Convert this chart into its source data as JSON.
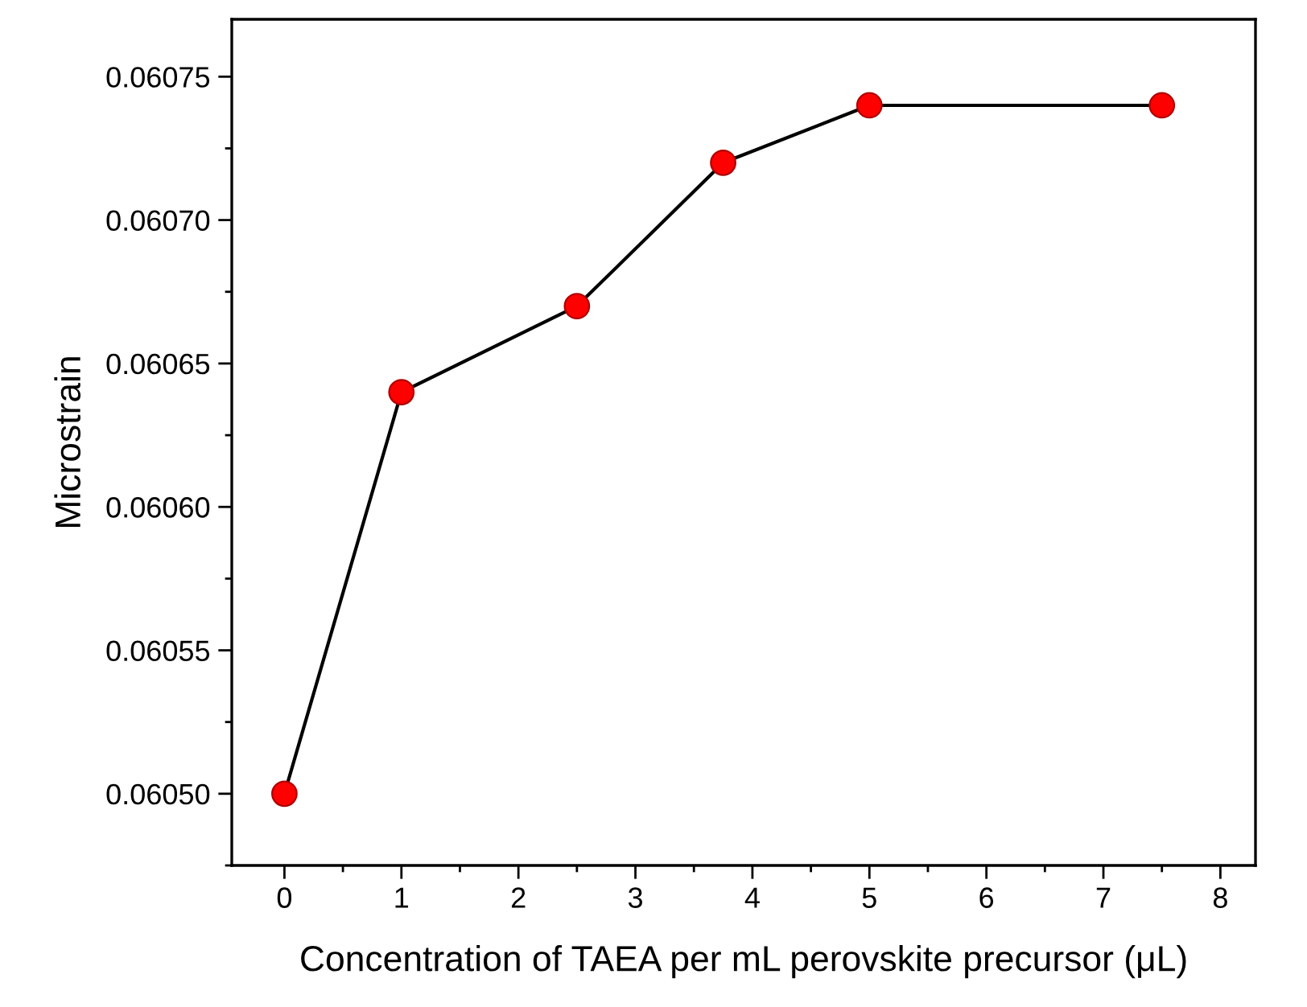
{
  "chart_data": {
    "type": "line",
    "xlabel": "Concentration of TAEA per mL perovskite precursor (μL)",
    "ylabel": "Microstrain",
    "x": [
      0,
      1,
      2.5,
      3.75,
      5,
      7.5
    ],
    "series": [
      {
        "color": "#ff0000",
        "values": [
          0.0605,
          0.06064,
          0.06067,
          0.06072,
          0.06074,
          0.06074
        ]
      }
    ],
    "marker": "circle",
    "line_style": "solid",
    "grid": false,
    "legend": false,
    "xlim": [
      -0.45,
      8.3
    ],
    "xticks": [
      0,
      1,
      2,
      3,
      4,
      5,
      6,
      7,
      8
    ],
    "ylim": [
      0.060475,
      0.06077
    ],
    "yticks": [
      {
        "value": 0.0605,
        "label": "0.06050"
      },
      {
        "value": 0.06055,
        "label": "0.06055"
      },
      {
        "value": 0.0606,
        "label": "0.06060"
      },
      {
        "value": 0.06065,
        "label": "0.06065"
      },
      {
        "value": 0.0607,
        "label": "0.06070"
      },
      {
        "value": 0.06075,
        "label": "0.06075"
      }
    ]
  }
}
